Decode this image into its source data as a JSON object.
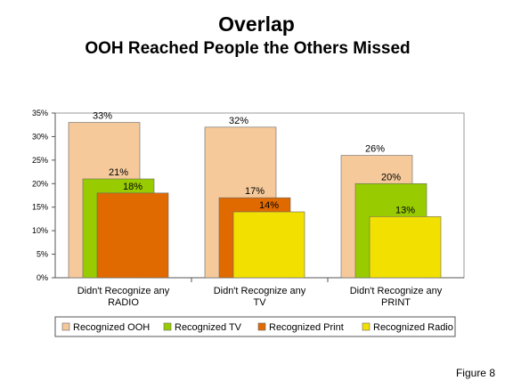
{
  "chart_data": {
    "type": "bar",
    "title": "Overlap",
    "subtitle": "OOH Reached People the Others Missed",
    "xlabel": "",
    "ylabel": "",
    "ylim": [
      0,
      35
    ],
    "y_ticks": [
      "0%",
      "5%",
      "10%",
      "15%",
      "20%",
      "25%",
      "30%",
      "35%"
    ],
    "y_tick_values": [
      0,
      5,
      10,
      15,
      20,
      25,
      30,
      35
    ],
    "categories": [
      {
        "line1": "Didn't Recognize any",
        "line2": "RADIO"
      },
      {
        "line1": "Didn't Recognize any",
        "line2": "TV"
      },
      {
        "line1": "Didn't Recognize any",
        "line2": "PRINT"
      }
    ],
    "series": [
      {
        "name": "Recognized OOH",
        "color": "#F5C99A",
        "values": [
          33,
          32,
          26
        ],
        "labels": [
          "33%",
          "32%",
          "26%"
        ]
      },
      {
        "name": "Recognized TV",
        "color": "#99CC00",
        "values": [
          21,
          null,
          20
        ],
        "labels": [
          "21%",
          null,
          "20%"
        ]
      },
      {
        "name": "Recognized Print",
        "color": "#E06A00",
        "values": [
          18,
          17,
          null
        ],
        "labels": [
          "18%",
          "17%",
          null
        ]
      },
      {
        "name": "Recognized Radio",
        "color": "#F2E100",
        "values": [
          null,
          14,
          13
        ],
        "labels": [
          null,
          "14%",
          "13%"
        ]
      }
    ],
    "legend_position": "bottom",
    "grid": false
  },
  "figure_label": "Figure 8"
}
